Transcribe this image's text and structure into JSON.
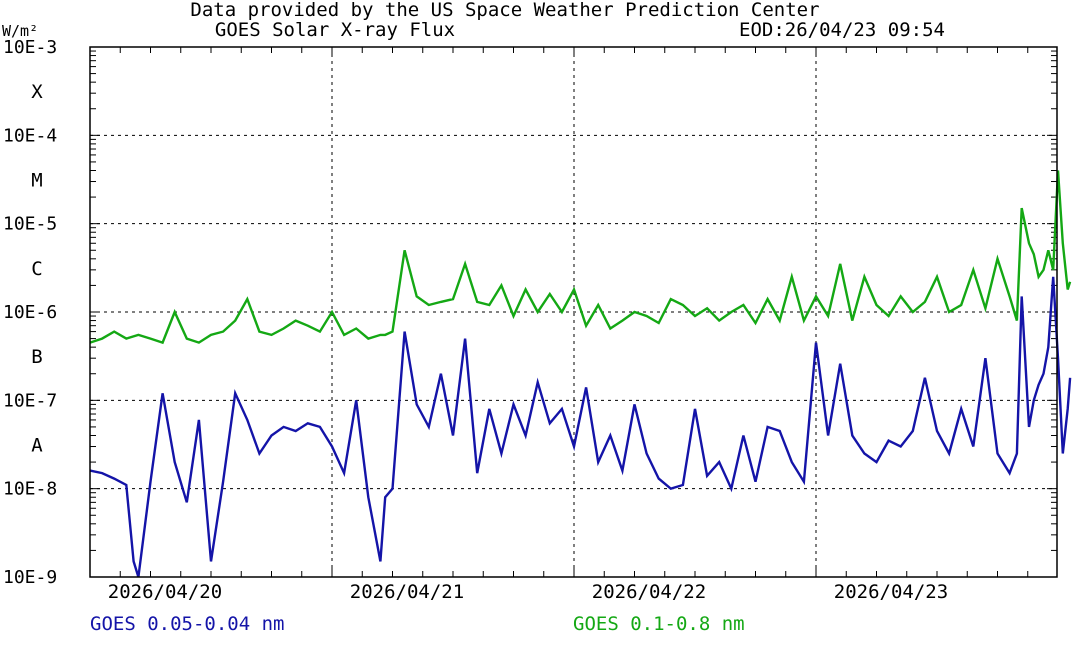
{
  "chart_data": {
    "type": "line",
    "title": "Data provided by the US Space Weather Prediction Center",
    "subtitle": "GOES Solar X-ray Flux",
    "timestamp": "EOD:26/04/23 09:54",
    "ylabel": "W/m²",
    "yscale": "log",
    "ylim": [
      1e-09,
      0.001
    ],
    "y_ticks": [
      {
        "value": 0.001,
        "label": "10E-3"
      },
      {
        "value": 0.0001,
        "label": "10E-4"
      },
      {
        "value": 1e-05,
        "label": "10E-5"
      },
      {
        "value": 1e-06,
        "label": "10E-6"
      },
      {
        "value": 1e-07,
        "label": "10E-7"
      },
      {
        "value": 1e-08,
        "label": "10E-8"
      },
      {
        "value": 1e-09,
        "label": "10E-9"
      }
    ],
    "flare_classes": [
      {
        "label": "X",
        "value": 0.000316
      },
      {
        "label": "M",
        "value": 3.16e-05
      },
      {
        "label": "C",
        "value": 3.16e-06
      },
      {
        "label": "B",
        "value": 3.16e-07
      },
      {
        "label": "A",
        "value": 3.16e-08
      }
    ],
    "x_ticks": [
      "2026/04/20",
      "2026/04/21",
      "2026/04/22",
      "2026/04/23"
    ],
    "xlim": [
      0,
      4
    ],
    "grid": true,
    "series": [
      {
        "name": "GOES 0.05-0.04 nm",
        "color": "#1414a8",
        "x": [
          0.0,
          0.05,
          0.1,
          0.15,
          0.18,
          0.2,
          0.25,
          0.3,
          0.35,
          0.4,
          0.45,
          0.5,
          0.55,
          0.6,
          0.65,
          0.7,
          0.75,
          0.8,
          0.85,
          0.9,
          0.95,
          1.0,
          1.05,
          1.1,
          1.15,
          1.2,
          1.22,
          1.25,
          1.3,
          1.35,
          1.4,
          1.45,
          1.5,
          1.55,
          1.6,
          1.65,
          1.7,
          1.75,
          1.8,
          1.85,
          1.9,
          1.95,
          2.0,
          2.05,
          2.1,
          2.15,
          2.2,
          2.25,
          2.3,
          2.35,
          2.4,
          2.45,
          2.5,
          2.55,
          2.6,
          2.65,
          2.7,
          2.75,
          2.8,
          2.85,
          2.9,
          2.95,
          3.0,
          3.05,
          3.1,
          3.15,
          3.2,
          3.25,
          3.3,
          3.35,
          3.4,
          3.45,
          3.5,
          3.55,
          3.6,
          3.65,
          3.7,
          3.75,
          3.8,
          3.83,
          3.85,
          3.88,
          3.9,
          3.92,
          3.94
        ],
        "values": [
          1.6e-08,
          1.5e-08,
          1.3e-08,
          1.1e-08,
          1.5e-09,
          1e-09,
          1.2e-08,
          1.2e-07,
          2e-08,
          7e-09,
          6e-08,
          1.5e-09,
          1.2e-08,
          1.2e-07,
          6e-08,
          2.5e-08,
          4e-08,
          5e-08,
          4.5e-08,
          5.5e-08,
          5e-08,
          3e-08,
          1.5e-08,
          1e-07,
          8e-09,
          1.5e-09,
          8e-09,
          1e-08,
          6e-07,
          9e-08,
          5e-08,
          2e-07,
          4e-08,
          5e-07,
          1.5e-08,
          8e-08,
          2.5e-08,
          9e-08,
          4e-08,
          1.6e-07,
          5.5e-08,
          8e-08,
          3e-08,
          1.4e-07,
          2e-08,
          4e-08,
          1.6e-08,
          9e-08,
          2.5e-08,
          1.3e-08,
          1e-08,
          1.1e-08,
          8e-08,
          1.4e-08,
          2e-08,
          1e-08,
          4e-08,
          1.2e-08,
          5e-08,
          4.5e-08,
          2e-08,
          1.2e-08,
          4.5e-07,
          4e-08,
          2.6e-07,
          4e-08,
          2.5e-08,
          2e-08,
          3.5e-08,
          3e-08,
          4.5e-08,
          1.8e-07,
          4.5e-08,
          2.5e-08,
          8e-08,
          3e-08,
          3e-07,
          2.5e-08,
          1.5e-08,
          2.5e-08,
          1.5e-06,
          5e-08,
          1e-07,
          1.5e-07,
          2e-07
        ],
        "extra_points": {
          "x": [
            3.96,
            3.98,
            4.0,
            4.02,
            4.04,
            4.05
          ],
          "values": [
            4e-07,
            2.5e-06,
            3e-07,
            2.5e-08,
            8e-08,
            1.8e-07
          ]
        }
      },
      {
        "name": "GOES 0.1-0.8 nm",
        "color": "#14a814",
        "x": [
          0.0,
          0.05,
          0.1,
          0.15,
          0.2,
          0.25,
          0.3,
          0.35,
          0.4,
          0.45,
          0.5,
          0.55,
          0.6,
          0.65,
          0.7,
          0.75,
          0.8,
          0.85,
          0.9,
          0.95,
          1.0,
          1.05,
          1.1,
          1.15,
          1.2,
          1.22,
          1.25,
          1.3,
          1.35,
          1.4,
          1.45,
          1.5,
          1.55,
          1.6,
          1.65,
          1.7,
          1.75,
          1.8,
          1.85,
          1.9,
          1.95,
          2.0,
          2.05,
          2.1,
          2.15,
          2.2,
          2.25,
          2.3,
          2.35,
          2.4,
          2.45,
          2.5,
          2.55,
          2.6,
          2.65,
          2.7,
          2.75,
          2.8,
          2.85,
          2.9,
          2.95,
          3.0,
          3.05,
          3.1,
          3.15,
          3.2,
          3.25,
          3.3,
          3.35,
          3.4,
          3.45,
          3.5,
          3.55,
          3.6,
          3.65,
          3.7,
          3.75,
          3.8,
          3.83,
          3.85,
          3.88,
          3.9,
          3.92,
          3.94,
          3.96,
          3.98,
          4.0,
          4.02,
          4.04,
          4.05
        ],
        "values": [
          4.5e-07,
          5e-07,
          6e-07,
          5e-07,
          5.5e-07,
          5e-07,
          4.5e-07,
          1e-06,
          5e-07,
          4.5e-07,
          5.5e-07,
          6e-07,
          8e-07,
          1.4e-06,
          6e-07,
          5.5e-07,
          6.5e-07,
          8e-07,
          7e-07,
          6e-07,
          1e-06,
          5.5e-07,
          6.5e-07,
          5e-07,
          5.5e-07,
          5.5e-07,
          6e-07,
          5e-06,
          1.5e-06,
          1.2e-06,
          1.3e-06,
          1.4e-06,
          3.5e-06,
          1.3e-06,
          1.2e-06,
          2e-06,
          9e-07,
          1.8e-06,
          1e-06,
          1.6e-06,
          1e-06,
          1.8e-06,
          7e-07,
          1.2e-06,
          6.5e-07,
          8e-07,
          1e-06,
          9e-07,
          7.5e-07,
          1.4e-06,
          1.2e-06,
          9e-07,
          1.1e-06,
          8e-07,
          1e-06,
          1.2e-06,
          7.5e-07,
          1.4e-06,
          8e-07,
          2.5e-06,
          8e-07,
          1.5e-06,
          9e-07,
          3.5e-06,
          8e-07,
          2.5e-06,
          1.2e-06,
          9e-07,
          1.5e-06,
          1e-06,
          1.3e-06,
          2.5e-06,
          1e-06,
          1.2e-06,
          3e-06,
          1.1e-06,
          4e-06,
          1.5e-06,
          8e-07,
          1.5e-05,
          6e-06,
          4.5e-06,
          2.5e-06,
          3e-06,
          5e-06,
          3e-06,
          4e-05,
          6e-06,
          1.8e-06,
          2.2e-06
        ]
      }
    ],
    "legend": [
      {
        "label": "GOES 0.05-0.04 nm",
        "color": "#1414a8",
        "position": "bottom-left"
      },
      {
        "label": "GOES 0.1-0.8 nm",
        "color": "#14a814",
        "position": "bottom-center"
      }
    ]
  }
}
